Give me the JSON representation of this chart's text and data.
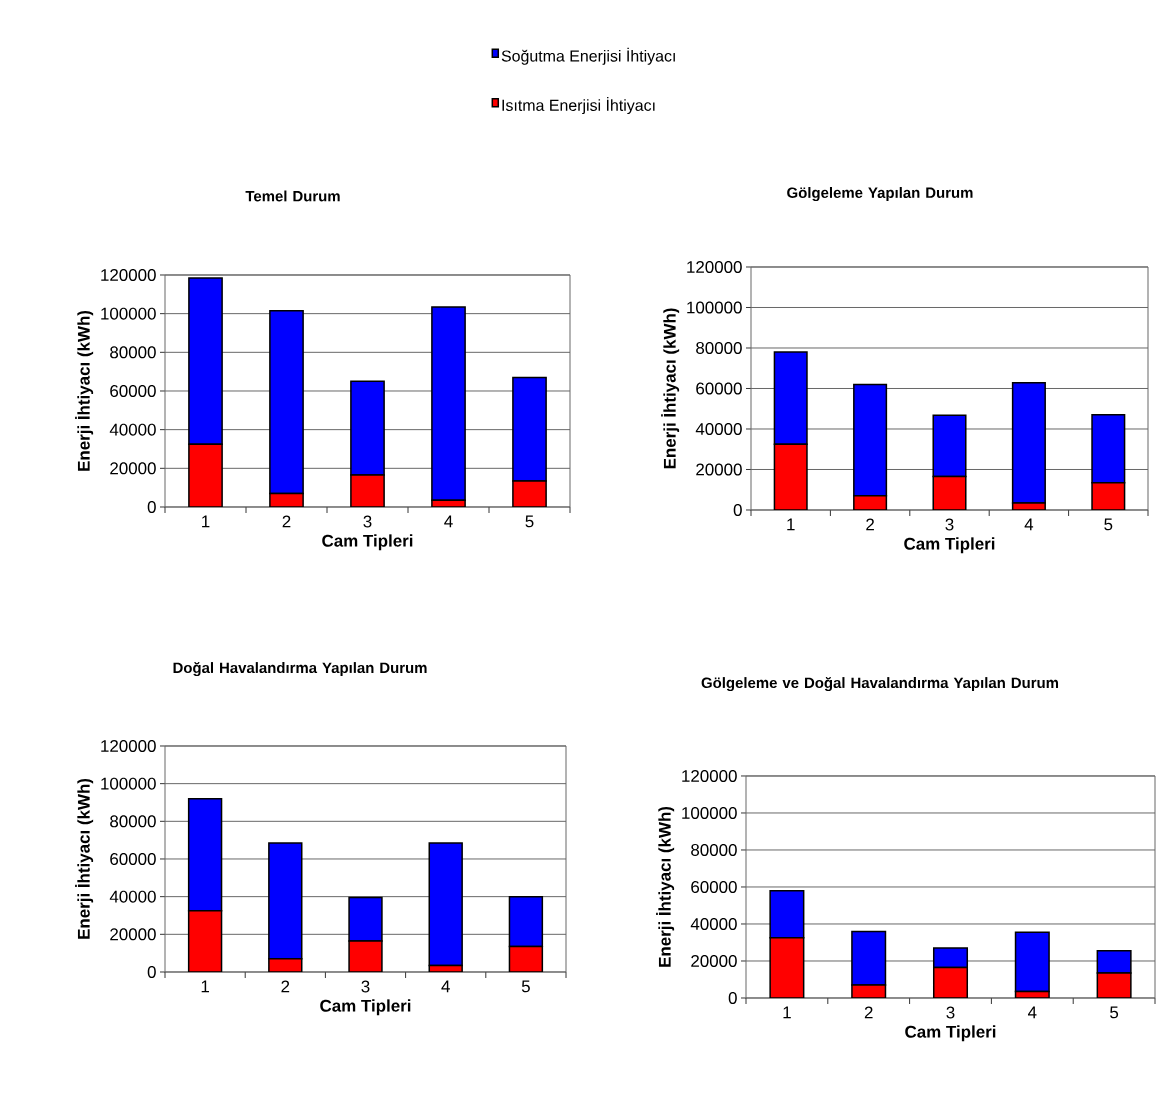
{
  "chart_data": [
    {
      "type": "bar",
      "stacked": true,
      "title": "Temel Durum",
      "xlabel": "Cam Tipleri",
      "ylabel": "Enerji İhtiyacı (kWh)",
      "categories": [
        "1",
        "2",
        "3",
        "4",
        "5"
      ],
      "ylim": [
        0,
        120000
      ],
      "yticks": [
        0,
        20000,
        40000,
        60000,
        80000,
        100000,
        120000
      ],
      "grid": "y",
      "legend": "top",
      "series": [
        {
          "name": "Isıtma Enerjisi İhtiyacı",
          "color": "#ff0000",
          "values": [
            32500,
            7000,
            16500,
            3500,
            13500
          ]
        },
        {
          "name": "Soğutma Enerjisi İhtiyacı",
          "color": "#0000ff",
          "values": [
            86000,
            94500,
            48500,
            100000,
            53500
          ]
        }
      ]
    },
    {
      "type": "bar",
      "stacked": true,
      "title": "Gölgeleme Yapılan Durum",
      "xlabel": "Cam Tipleri",
      "ylabel": "Enerji İhtiyacı (kWh)",
      "categories": [
        "1",
        "2",
        "3",
        "4",
        "5"
      ],
      "ylim": [
        0,
        120000
      ],
      "yticks": [
        0,
        20000,
        40000,
        60000,
        80000,
        100000,
        120000
      ],
      "grid": "y",
      "series": [
        {
          "color": "#ff0000",
          "values": [
            32500,
            7000,
            16500,
            3500,
            13500
          ]
        },
        {
          "color": "#0000ff",
          "values": [
            45500,
            55000,
            30300,
            59300,
            33500
          ]
        }
      ]
    },
    {
      "type": "bar",
      "stacked": true,
      "title": "Doğal Havalandırma Yapılan Durum",
      "xlabel": "Cam Tipleri",
      "ylabel": "Enerji İhtiyacı (kWh)",
      "categories": [
        "1",
        "2",
        "3",
        "4",
        "5"
      ],
      "ylim": [
        0,
        120000
      ],
      "yticks": [
        0,
        20000,
        40000,
        60000,
        80000,
        100000,
        120000
      ],
      "grid": "y",
      "series": [
        {
          "color": "#ff0000",
          "values": [
            32500,
            7000,
            16500,
            3500,
            13500
          ]
        },
        {
          "color": "#0000ff",
          "values": [
            59500,
            61500,
            23000,
            65000,
            26500
          ]
        }
      ]
    },
    {
      "type": "bar",
      "stacked": true,
      "title": "Gölgeleme ve Doğal Havalandırma Yapılan Durum",
      "xlabel": "Cam Tipleri",
      "ylabel": "Enerji İhtiyacı (kWh)",
      "categories": [
        "1",
        "2",
        "3",
        "4",
        "5"
      ],
      "ylim": [
        0,
        120000
      ],
      "yticks": [
        0,
        20000,
        40000,
        60000,
        80000,
        100000,
        120000
      ],
      "grid": "y",
      "series": [
        {
          "color": "#ff0000",
          "values": [
            32500,
            7000,
            16500,
            3500,
            13500
          ]
        },
        {
          "color": "#0000ff",
          "values": [
            25500,
            29000,
            10500,
            32000,
            12000
          ]
        }
      ]
    }
  ]
}
